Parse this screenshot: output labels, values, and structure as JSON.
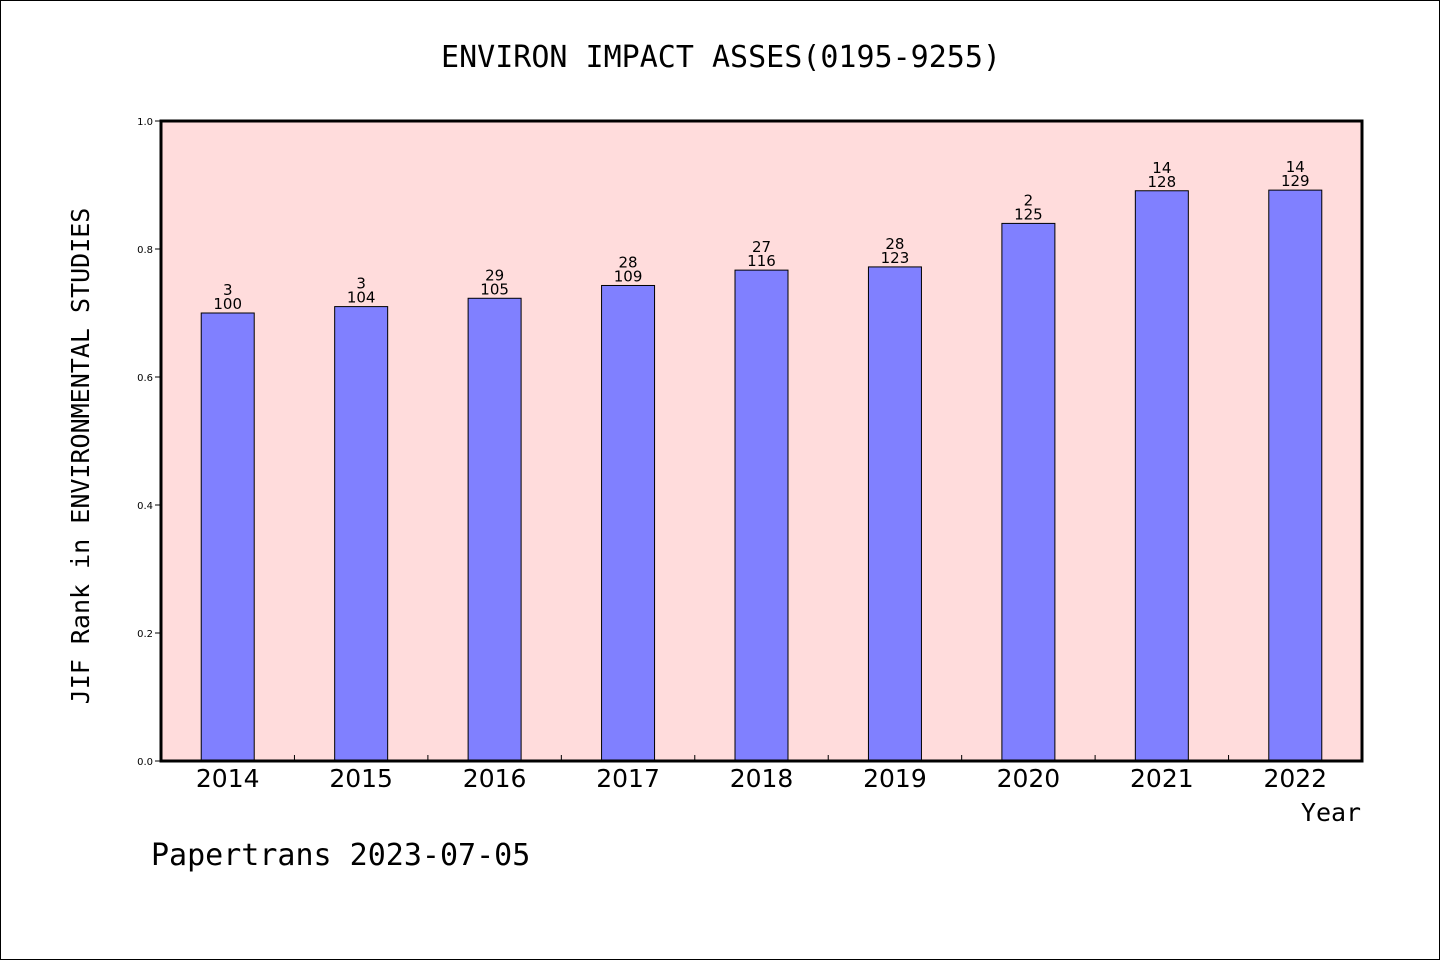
{
  "chart_data": {
    "type": "bar",
    "title": "ENVIRON IMPACT ASSES(0195-9255)",
    "xlabel": "Year",
    "ylabel": "JIF Rank in ENVIRONMENTAL STUDIES",
    "categories": [
      "2014",
      "2015",
      "2016",
      "2017",
      "2018",
      "2019",
      "2020",
      "2021",
      "2022"
    ],
    "values": [
      0.7,
      0.71,
      0.723,
      0.743,
      0.767,
      0.772,
      0.84,
      0.891,
      0.892
    ],
    "bar_labels_top": [
      "3",
      "3",
      "29",
      "28",
      "27",
      "28",
      "2",
      "14",
      "14"
    ],
    "bar_labels_bottom": [
      "100",
      "104",
      "105",
      "109",
      "116",
      "123",
      "125",
      "128",
      "129"
    ],
    "ylim": [
      0,
      1.0
    ],
    "yticks": [
      "0.0",
      "0.2",
      "0.4",
      "0.6",
      "0.8",
      "1.0"
    ],
    "ytick_values": [
      0,
      0.2,
      0.4,
      0.6,
      0.8,
      1.0
    ],
    "grid": false,
    "colors": {
      "plot_background": "#FFDCDC",
      "bar_fill": "#8080FF",
      "bar_stroke": "#000000"
    }
  },
  "footer": {
    "text": "Papertrans 2023-07-05"
  }
}
